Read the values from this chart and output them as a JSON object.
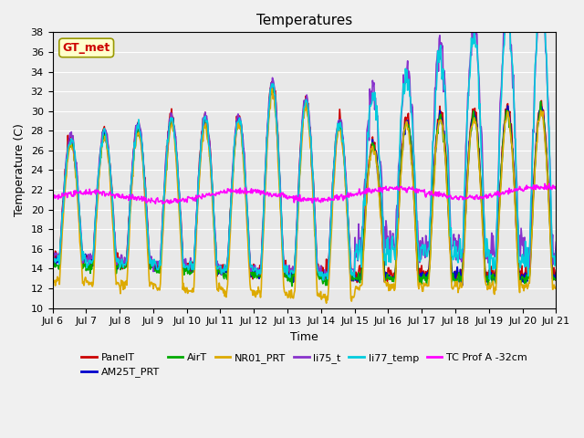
{
  "title": "Temperatures",
  "ylabel": "Temperature (C)",
  "xlabel": "Time",
  "ylim": [
    10,
    38
  ],
  "yticks": [
    10,
    12,
    14,
    16,
    18,
    20,
    22,
    24,
    26,
    28,
    30,
    32,
    34,
    36,
    38
  ],
  "xtick_labels": [
    "Jul 6",
    "Jul 7",
    "Jul 8",
    "Jul 9",
    "Jul 10",
    "Jul 11",
    "Jul 12",
    "Jul 13",
    "Jul 14",
    "Jul 15",
    "Jul 16",
    "Jul 17",
    "Jul 18",
    "Jul 19",
    "Jul 20",
    "Jul 21"
  ],
  "series_order": [
    "PanelT",
    "AM25T_PRT",
    "AirT",
    "NR01_PRT",
    "li75_t",
    "li77_temp",
    "TC Prof A -32cm"
  ],
  "series": {
    "PanelT": {
      "color": "#cc0000",
      "lw": 1.2
    },
    "AM25T_PRT": {
      "color": "#0000cc",
      "lw": 1.2
    },
    "AirT": {
      "color": "#00aa00",
      "lw": 1.2
    },
    "NR01_PRT": {
      "color": "#ddaa00",
      "lw": 1.2
    },
    "li75_t": {
      "color": "#8833cc",
      "lw": 1.2
    },
    "li77_temp": {
      "color": "#00ccdd",
      "lw": 1.2
    },
    "TC Prof A -32cm": {
      "color": "#ff00ff",
      "lw": 1.2
    }
  },
  "gt_met_box": {
    "text": "GT_met",
    "text_color": "#cc0000",
    "bg_color": "#ffffcc",
    "edge_color": "#999900",
    "fontsize": 9
  },
  "plot_bg_color": "#e8e8e8",
  "fig_bg_color": "#f0f0f0",
  "grid_color": "#ffffff",
  "title_fontsize": 11,
  "axis_fontsize": 9,
  "tick_fontsize": 8,
  "legend_fontsize": 8,
  "n_days": 15,
  "n_points_per_day": 48,
  "base_night": 15.5,
  "base_day_early": 27.0,
  "base_day_late": 16.5,
  "tc_base": 21.2
}
